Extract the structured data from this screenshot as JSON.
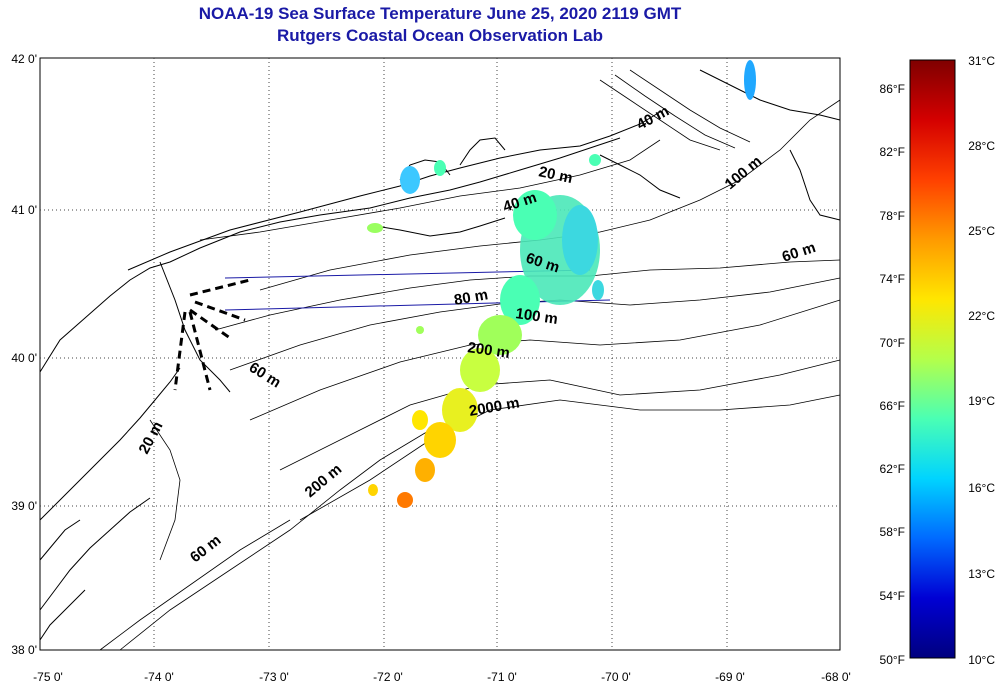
{
  "title": "NOAA-19 Sea Surface Temperature June 25, 2020 2119 GMT",
  "subtitle": "Rutgers Coastal Ocean Observation Lab",
  "axes": {
    "lon_labels": [
      "-75 0'",
      "-74 0'",
      "-73 0'",
      "-72 0'",
      "-71 0'",
      "-70 0'",
      "-69 0'",
      "-68 0'"
    ],
    "lat_labels": [
      "42 0'",
      "41 0'",
      "40 0'",
      "39 0'",
      "38 0'"
    ]
  },
  "depth_labels": [
    {
      "text": "40 m"
    },
    {
      "text": "100 m"
    },
    {
      "text": "20 m"
    },
    {
      "text": "40 m"
    },
    {
      "text": "60 m"
    },
    {
      "text": "60 m"
    },
    {
      "text": "80 m"
    },
    {
      "text": "100 m"
    },
    {
      "text": "200 m"
    },
    {
      "text": "60 m"
    },
    {
      "text": "2000 m"
    },
    {
      "text": "20 m"
    },
    {
      "text": "200 m"
    },
    {
      "text": "60 m"
    }
  ],
  "colorbar": {
    "f_labels": [
      "86°F",
      "82°F",
      "78°F",
      "74°F",
      "70°F",
      "66°F",
      "62°F",
      "58°F",
      "54°F",
      "50°F"
    ],
    "c_labels": [
      "31°C",
      "28°C",
      "25°C",
      "22°C",
      "19°C",
      "16°C",
      "13°C",
      "10°C"
    ],
    "colors": [
      "#7f0000",
      "#d40000",
      "#ff4000",
      "#ff9a00",
      "#ffe600",
      "#b4ff4a",
      "#4affb4",
      "#00d4ff",
      "#006aff",
      "#0000d4",
      "#00007f"
    ]
  }
}
